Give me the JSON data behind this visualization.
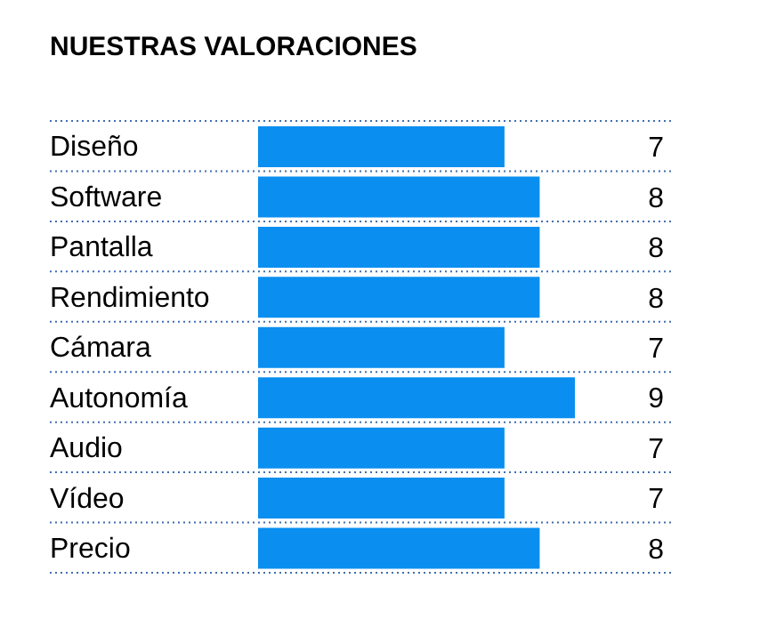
{
  "chart_data": {
    "type": "bar",
    "orientation": "horizontal",
    "title": "NUESTRAS VALORACIONES",
    "categories": [
      "Diseño",
      "Software",
      "Pantalla",
      "Rendimiento",
      "Cámara",
      "Autonomía",
      "Audio",
      "Vídeo",
      "Precio"
    ],
    "values": [
      7,
      8,
      8,
      8,
      7,
      9,
      7,
      7,
      8
    ],
    "color": "#0a8ff0",
    "tick_labels": "y",
    "data_labels": true,
    "grid": "y",
    "line_style": "dotted"
  }
}
